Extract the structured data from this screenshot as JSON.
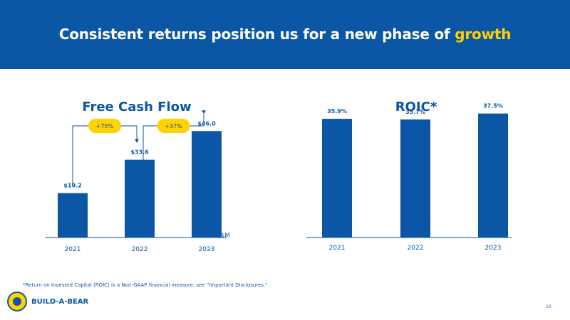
{
  "header": {
    "title_main": "Consistent returns position us for a new phase of",
    "title_highlight": "growth"
  },
  "colors": {
    "bar": "#0c56a6",
    "accent": "#ffd200",
    "banner": "#0c56a6",
    "text": "#0c56a6"
  },
  "chart_data": [
    {
      "type": "bar",
      "title": "Free Cash Flow",
      "categories": [
        "2021",
        "2022",
        "2023"
      ],
      "values": [
        19.2,
        33.6,
        46.0
      ],
      "value_labels": [
        "$19.2",
        "$33.6",
        "$46.0"
      ],
      "unit_label": "$M",
      "annotations": [
        {
          "from": "2021",
          "to": "2022",
          "label": "+75%"
        },
        {
          "from": "2022",
          "to": "2023",
          "label": "+37%"
        }
      ],
      "ylim": [
        0,
        55
      ]
    },
    {
      "type": "bar",
      "title": "ROIC*",
      "categories": [
        "2021",
        "2022",
        "2023"
      ],
      "values": [
        35.9,
        35.7,
        37.5
      ],
      "value_labels": [
        "35.9%",
        "35.7%",
        "37.5%"
      ],
      "ylim": [
        0,
        38.5
      ]
    }
  ],
  "footer": {
    "footnote": "*Return on Invested Capital (ROIC) is a Non-GAAP financial measure, see \"Important Disclosures.\"",
    "brand": "BUILD-A-BEAR",
    "page_number": "10"
  }
}
